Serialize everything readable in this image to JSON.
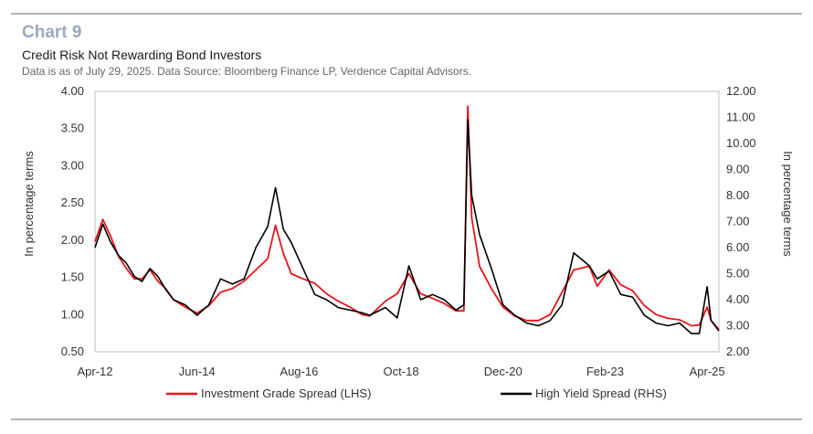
{
  "header": {
    "chart_label": "Chart 9",
    "title": "Credit Risk Not Rewarding Bond Investors",
    "note": "Data is as of July 29, 2025. Data Source: Bloomberg Finance LP, Verdence Capital Advisors."
  },
  "chart_data": {
    "type": "line",
    "title": "Credit Risk Not Rewarding Bond Investors",
    "ylabel_left": "In percentage terms",
    "ylabel_right": "In percentage terms",
    "ylim_left": [
      0.5,
      4.0
    ],
    "ylim_right": [
      2.0,
      12.0
    ],
    "yticks_left": [
      "4.00",
      "3.50",
      "3.00",
      "2.50",
      "2.00",
      "1.50",
      "1.00",
      "0.50"
    ],
    "yticks_right": [
      "12.00",
      "11.00",
      "10.00",
      "9.00",
      "8.00",
      "7.00",
      "6.00",
      "5.00",
      "4.00",
      "3.00",
      "2.00"
    ],
    "xlim": [
      "2012-04",
      "2025-07"
    ],
    "xticks": [
      {
        "label": "Apr-12",
        "date": "2012-04"
      },
      {
        "label": "Jun-14",
        "date": "2014-06"
      },
      {
        "label": "Aug-16",
        "date": "2016-08"
      },
      {
        "label": "Oct-18",
        "date": "2018-10"
      },
      {
        "label": "Dec-20",
        "date": "2020-12"
      },
      {
        "label": "Feb-23",
        "date": "2023-02"
      },
      {
        "label": "Apr-25",
        "date": "2025-04"
      }
    ],
    "grid": false,
    "legend_position": "bottom",
    "series": [
      {
        "name": "Investment Grade Spread (LHS)",
        "axis": "left",
        "color": "#e8141b",
        "points": [
          [
            "2012-04",
            1.98
          ],
          [
            "2012-06",
            2.28
          ],
          [
            "2012-08",
            2.05
          ],
          [
            "2012-10",
            1.78
          ],
          [
            "2012-12",
            1.62
          ],
          [
            "2013-02",
            1.48
          ],
          [
            "2013-04",
            1.48
          ],
          [
            "2013-06",
            1.6
          ],
          [
            "2013-08",
            1.45
          ],
          [
            "2013-10",
            1.35
          ],
          [
            "2013-12",
            1.2
          ],
          [
            "2014-03",
            1.1
          ],
          [
            "2014-06",
            1.02
          ],
          [
            "2014-09",
            1.12
          ],
          [
            "2014-12",
            1.3
          ],
          [
            "2015-03",
            1.35
          ],
          [
            "2015-06",
            1.45
          ],
          [
            "2015-09",
            1.6
          ],
          [
            "2015-12",
            1.75
          ],
          [
            "2016-02",
            2.2
          ],
          [
            "2016-04",
            1.82
          ],
          [
            "2016-06",
            1.55
          ],
          [
            "2016-09",
            1.48
          ],
          [
            "2016-12",
            1.42
          ],
          [
            "2017-03",
            1.28
          ],
          [
            "2017-06",
            1.18
          ],
          [
            "2017-09",
            1.1
          ],
          [
            "2017-12",
            1.0
          ],
          [
            "2018-02",
            0.98
          ],
          [
            "2018-06",
            1.18
          ],
          [
            "2018-09",
            1.28
          ],
          [
            "2018-12",
            1.55
          ],
          [
            "2019-03",
            1.28
          ],
          [
            "2019-06",
            1.22
          ],
          [
            "2019-09",
            1.15
          ],
          [
            "2019-12",
            1.05
          ],
          [
            "2020-02",
            1.05
          ],
          [
            "2020-03",
            3.8
          ],
          [
            "2020-04",
            2.3
          ],
          [
            "2020-06",
            1.65
          ],
          [
            "2020-09",
            1.35
          ],
          [
            "2020-12",
            1.1
          ],
          [
            "2021-03",
            0.98
          ],
          [
            "2021-06",
            0.92
          ],
          [
            "2021-09",
            0.92
          ],
          [
            "2021-12",
            1.0
          ],
          [
            "2022-03",
            1.3
          ],
          [
            "2022-06",
            1.6
          ],
          [
            "2022-10",
            1.65
          ],
          [
            "2022-12",
            1.38
          ],
          [
            "2023-03",
            1.6
          ],
          [
            "2023-06",
            1.4
          ],
          [
            "2023-09",
            1.32
          ],
          [
            "2023-12",
            1.12
          ],
          [
            "2024-03",
            1.0
          ],
          [
            "2024-06",
            0.95
          ],
          [
            "2024-09",
            0.93
          ],
          [
            "2024-12",
            0.85
          ],
          [
            "2025-02",
            0.86
          ],
          [
            "2025-04",
            1.1
          ],
          [
            "2025-05",
            0.92
          ],
          [
            "2025-07",
            0.8
          ]
        ]
      },
      {
        "name": "High Yield Spread (RHS)",
        "axis": "right",
        "color": "#000000",
        "points": [
          [
            "2012-04",
            6.0
          ],
          [
            "2012-06",
            6.9
          ],
          [
            "2012-08",
            6.2
          ],
          [
            "2012-10",
            5.7
          ],
          [
            "2012-12",
            5.4
          ],
          [
            "2013-02",
            4.9
          ],
          [
            "2013-04",
            4.7
          ],
          [
            "2013-06",
            5.2
          ],
          [
            "2013-08",
            4.9
          ],
          [
            "2013-10",
            4.4
          ],
          [
            "2013-12",
            4.0
          ],
          [
            "2014-03",
            3.8
          ],
          [
            "2014-06",
            3.4
          ],
          [
            "2014-09",
            3.8
          ],
          [
            "2014-12",
            4.8
          ],
          [
            "2015-03",
            4.6
          ],
          [
            "2015-06",
            4.8
          ],
          [
            "2015-09",
            6.0
          ],
          [
            "2015-12",
            6.8
          ],
          [
            "2016-02",
            8.3
          ],
          [
            "2016-04",
            6.7
          ],
          [
            "2016-06",
            6.2
          ],
          [
            "2016-09",
            5.2
          ],
          [
            "2016-12",
            4.2
          ],
          [
            "2017-03",
            4.0
          ],
          [
            "2017-06",
            3.7
          ],
          [
            "2017-09",
            3.6
          ],
          [
            "2017-12",
            3.5
          ],
          [
            "2018-02",
            3.4
          ],
          [
            "2018-06",
            3.7
          ],
          [
            "2018-09",
            3.3
          ],
          [
            "2018-12",
            5.3
          ],
          [
            "2019-03",
            4.0
          ],
          [
            "2019-06",
            4.2
          ],
          [
            "2019-09",
            4.0
          ],
          [
            "2019-12",
            3.6
          ],
          [
            "2020-02",
            3.8
          ],
          [
            "2020-03",
            10.9
          ],
          [
            "2020-04",
            8.0
          ],
          [
            "2020-06",
            6.5
          ],
          [
            "2020-09",
            5.2
          ],
          [
            "2020-12",
            3.8
          ],
          [
            "2021-03",
            3.4
          ],
          [
            "2021-06",
            3.1
          ],
          [
            "2021-09",
            3.0
          ],
          [
            "2021-12",
            3.2
          ],
          [
            "2022-03",
            3.8
          ],
          [
            "2022-06",
            5.8
          ],
          [
            "2022-10",
            5.3
          ],
          [
            "2022-12",
            4.8
          ],
          [
            "2023-03",
            5.1
          ],
          [
            "2023-06",
            4.2
          ],
          [
            "2023-09",
            4.1
          ],
          [
            "2023-12",
            3.4
          ],
          [
            "2024-03",
            3.1
          ],
          [
            "2024-06",
            3.0
          ],
          [
            "2024-09",
            3.1
          ],
          [
            "2024-12",
            2.7
          ],
          [
            "2025-02",
            2.7
          ],
          [
            "2025-04",
            4.5
          ],
          [
            "2025-05",
            3.2
          ],
          [
            "2025-07",
            2.8
          ]
        ]
      }
    ]
  }
}
